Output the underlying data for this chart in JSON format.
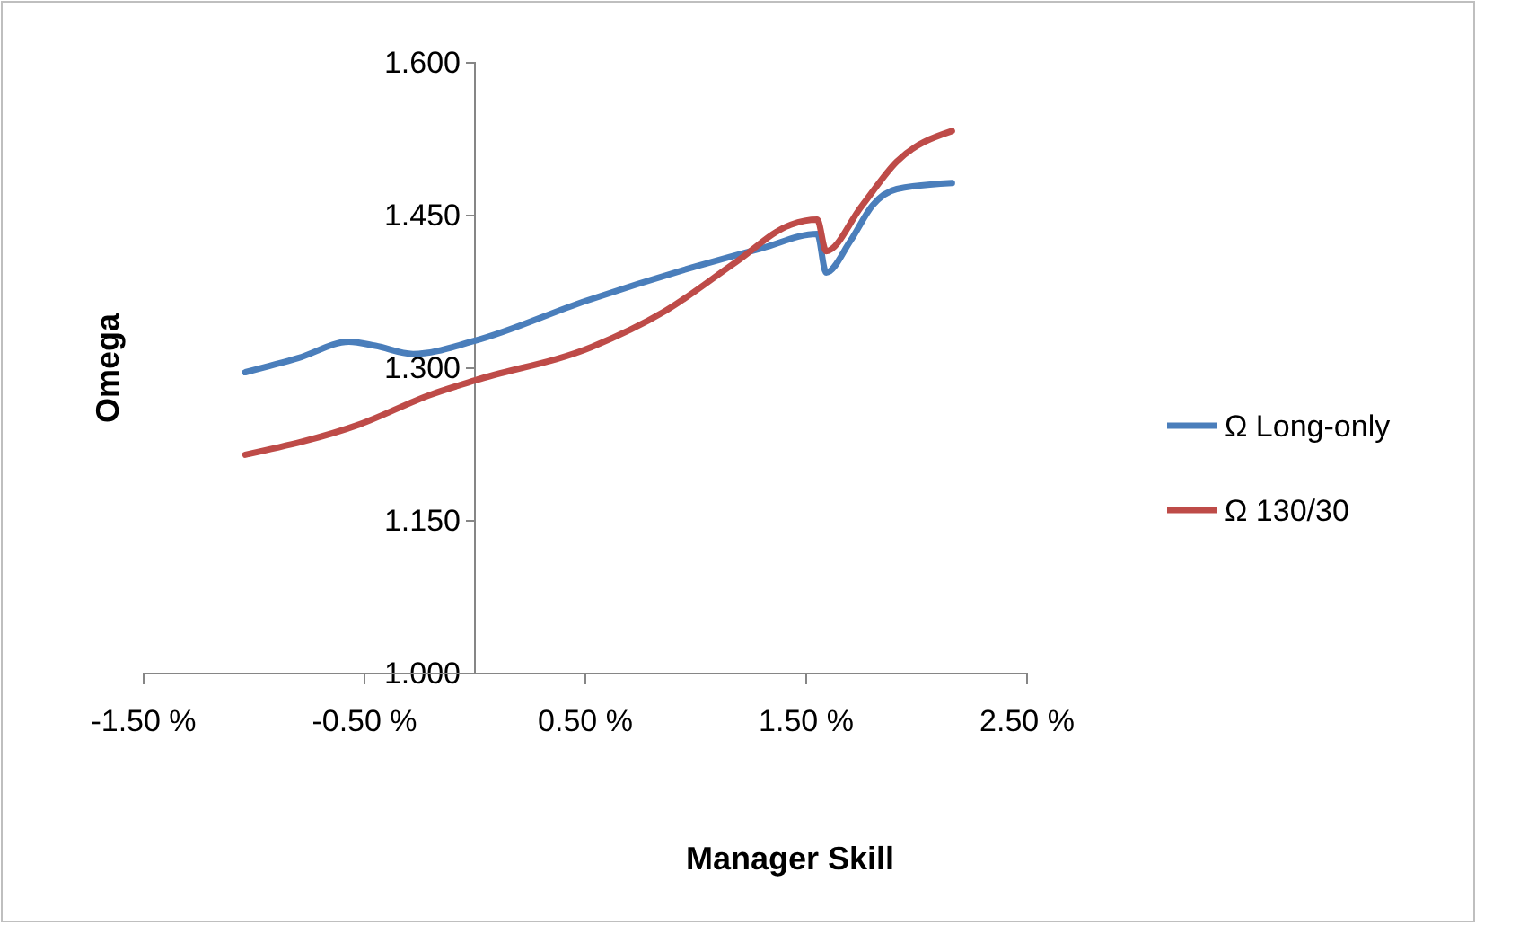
{
  "chart_data": {
    "type": "line",
    "xlabel": "Manager Skill",
    "ylabel": "Omega",
    "xlim": [
      -1.5,
      2.5
    ],
    "xticks": [
      {
        "value": -1.5,
        "label": "-1.50 %"
      },
      {
        "value": -0.5,
        "label": "-0.50 %"
      },
      {
        "value": 0.5,
        "label": "0.50 %"
      },
      {
        "value": 1.5,
        "label": "1.50 %"
      },
      {
        "value": 2.5,
        "label": "2.50 %"
      }
    ],
    "ylim": [
      1.0,
      1.6
    ],
    "yticks": [
      {
        "value": 1.0,
        "label": "1.000"
      },
      {
        "value": 1.15,
        "label": "1.150"
      },
      {
        "value": 1.3,
        "label": "1.300"
      },
      {
        "value": 1.45,
        "label": "1.450"
      },
      {
        "value": 1.6,
        "label": "1.600"
      }
    ],
    "legend": "right",
    "grid": false,
    "marker": "none",
    "line_style": "solid",
    "series": [
      {
        "name": "Ω Long-only",
        "color": "#4a7ebb",
        "x": [
          -1.04,
          -0.8,
          -0.57,
          -0.45,
          -0.28,
          0,
          0.5,
          1.0,
          1.3,
          1.55,
          1.59,
          1.7,
          1.8,
          1.91,
          2.16
        ],
        "values": [
          1.296,
          1.31,
          1.326,
          1.322,
          1.314,
          1.327,
          1.366,
          1.4,
          1.418,
          1.432,
          1.394,
          1.425,
          1.46,
          1.476,
          1.482
        ]
      },
      {
        "name": "Ω 130/30",
        "color": "#be4b48",
        "x": [
          -1.04,
          -0.52,
          -0.2,
          0,
          0.53,
          0.86,
          1.18,
          1.43,
          1.55,
          1.59,
          1.75,
          1.91,
          2.16
        ],
        "values": [
          1.215,
          1.245,
          1.274,
          1.288,
          1.321,
          1.356,
          1.404,
          1.441,
          1.446,
          1.415,
          1.459,
          1.503,
          1.533
        ]
      }
    ]
  }
}
